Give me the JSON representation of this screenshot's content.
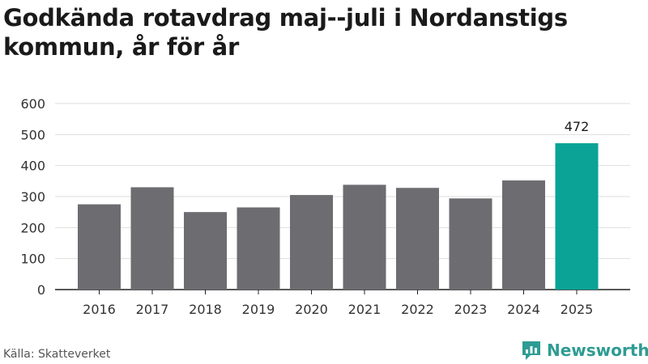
{
  "title": "Godkända rotavdrag maj--juli i Nordanstigs kommun, år för år",
  "source": "Källa: Skatteverket",
  "brand": "Newsworthy",
  "colors": {
    "bar": "#6d6c71",
    "highlight": "#0aa396",
    "grid": "#dedede",
    "axis": "#222222",
    "brand": "#2e9c93"
  },
  "chart_data": {
    "type": "bar",
    "categories": [
      "2016",
      "2017",
      "2018",
      "2019",
      "2020",
      "2021",
      "2022",
      "2023",
      "2024",
      "2025"
    ],
    "values": [
      275,
      330,
      250,
      265,
      305,
      338,
      328,
      294,
      352,
      472
    ],
    "highlight_index": 9,
    "data_labels": [
      {
        "index": 9,
        "text": "472"
      }
    ],
    "title": "Godkända rotavdrag maj--juli i Nordanstigs kommun, år för år",
    "xlabel": "",
    "ylabel": "",
    "ylim": [
      0,
      600
    ],
    "yticks": [
      0,
      100,
      200,
      300,
      400,
      500,
      600
    ],
    "grid": true
  }
}
